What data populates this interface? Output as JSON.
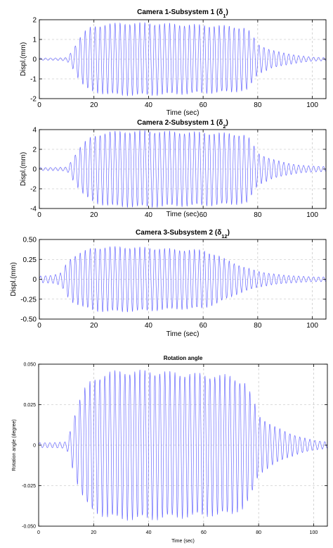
{
  "chart_data": [
    {
      "type": "line",
      "title": "Camera 1-Subsystem 1 (δ",
      "title_sub": "1",
      "title_end": ")",
      "xlabel": "Time (sec)",
      "ylabel": "Displ.(mm)",
      "xlim": [
        0,
        105
      ],
      "ylim": [
        -2,
        2
      ],
      "xticks": [
        0,
        20,
        40,
        60,
        80,
        100
      ],
      "xtick_labels": [
        "0",
        "20",
        "40",
        "60",
        "80",
        "100"
      ],
      "yticks": [
        -2,
        -1,
        0,
        1,
        2
      ],
      "ytick_labels": [
        "-2",
        "-1",
        "0",
        "1",
        "2"
      ],
      "grid": true,
      "line_color": "#6a6aff",
      "series": [
        {
          "x": [
            0,
            5,
            10,
            12,
            14,
            16,
            18,
            20,
            25,
            30,
            40,
            50,
            60,
            70,
            76,
            78,
            80,
            85,
            90,
            95,
            100,
            105
          ],
          "amplitude": [
            0.05,
            0.05,
            0.08,
            0.4,
            0.9,
            1.3,
            1.55,
            1.65,
            1.75,
            1.8,
            1.8,
            1.75,
            1.7,
            1.65,
            1.55,
            1.2,
            0.75,
            0.45,
            0.3,
            0.18,
            0.1,
            0.08
          ]
        }
      ]
    },
    {
      "type": "line",
      "title": "Camera 2-Subsystem 1 (δ",
      "title_sub": "2",
      "title_end": ")",
      "xlabel": "Time (sec)",
      "ylabel": "Displ.(mm)",
      "xlim": [
        0,
        105
      ],
      "ylim": [
        -4,
        4
      ],
      "xticks": [
        0,
        20,
        40,
        60,
        80,
        100
      ],
      "xtick_labels": [
        "0",
        "20",
        "40",
        "60",
        "80",
        "100"
      ],
      "yticks": [
        -4,
        -2,
        0,
        2,
        4
      ],
      "ytick_labels": [
        "-4",
        "-2",
        "0",
        "2",
        "4"
      ],
      "grid": true,
      "line_color": "#6a6aff",
      "series": [
        {
          "x": [
            0,
            5,
            10,
            11,
            13,
            15,
            17,
            19,
            22,
            26,
            30,
            40,
            50,
            60,
            70,
            76,
            78,
            80,
            85,
            90,
            95,
            100,
            105
          ],
          "amplitude": [
            0.15,
            0.15,
            0.2,
            0.5,
            1.4,
            2.2,
            2.8,
            3.2,
            3.5,
            3.7,
            3.75,
            3.8,
            3.7,
            3.65,
            3.55,
            3.4,
            2.6,
            1.6,
            1.0,
            0.65,
            0.4,
            0.3,
            0.25
          ]
        }
      ]
    },
    {
      "type": "line",
      "title": "Camera 3-Subsystem 2 (δ",
      "title_sub": "12",
      "title_end": ")",
      "xlabel": "Time (sec)",
      "ylabel": "Displ.(mm)",
      "xlim": [
        0,
        105
      ],
      "ylim": [
        -0.5,
        0.5
      ],
      "xticks": [
        0,
        20,
        40,
        60,
        80,
        100
      ],
      "xtick_labels": [
        "0",
        "20",
        "40",
        "60",
        "80",
        "100"
      ],
      "yticks": [
        -0.5,
        -0.25,
        0,
        0.25,
        0.5
      ],
      "ytick_labels": [
        "-0.50",
        "-0.25",
        "0",
        "0.25",
        "0.50"
      ],
      "grid": true,
      "line_color": "#6a6aff",
      "series": [
        {
          "x": [
            0,
            5,
            8,
            10,
            12,
            15,
            18,
            20,
            25,
            30,
            40,
            50,
            60,
            65,
            70,
            75,
            80,
            85,
            90,
            95,
            100,
            105
          ],
          "amplitude": [
            0.04,
            0.05,
            0.08,
            0.2,
            0.28,
            0.33,
            0.37,
            0.39,
            0.4,
            0.4,
            0.39,
            0.37,
            0.36,
            0.3,
            0.22,
            0.15,
            0.1,
            0.07,
            0.05,
            0.04,
            0.03,
            0.03
          ]
        }
      ]
    },
    {
      "type": "line",
      "title": "Rotation angle",
      "xlabel": "Time (sec)",
      "ylabel": "Rotation angle (degree)",
      "xlim": [
        0,
        105
      ],
      "ylim": [
        -0.05,
        0.05
      ],
      "xticks": [
        0,
        20,
        40,
        60,
        80,
        100
      ],
      "xtick_labels": [
        "0",
        "20",
        "40",
        "60",
        "80",
        "100"
      ],
      "yticks": [
        -0.05,
        -0.025,
        0,
        0.025,
        0.05
      ],
      "ytick_labels": [
        "-0.050",
        "-0.025",
        "0",
        "0.025",
        "0.050"
      ],
      "grid": true,
      "line_color": "#6a6aff",
      "series": [
        {
          "x": [
            0,
            5,
            10,
            11,
            13,
            15,
            17,
            19,
            22,
            25,
            30,
            40,
            50,
            60,
            70,
            75,
            78,
            80,
            85,
            90,
            95,
            100,
            105
          ],
          "amplitude": [
            0.0015,
            0.0015,
            0.002,
            0.006,
            0.018,
            0.028,
            0.035,
            0.039,
            0.042,
            0.044,
            0.045,
            0.045,
            0.044,
            0.043,
            0.042,
            0.038,
            0.028,
            0.018,
            0.012,
            0.008,
            0.005,
            0.003,
            0.002
          ]
        }
      ]
    }
  ]
}
